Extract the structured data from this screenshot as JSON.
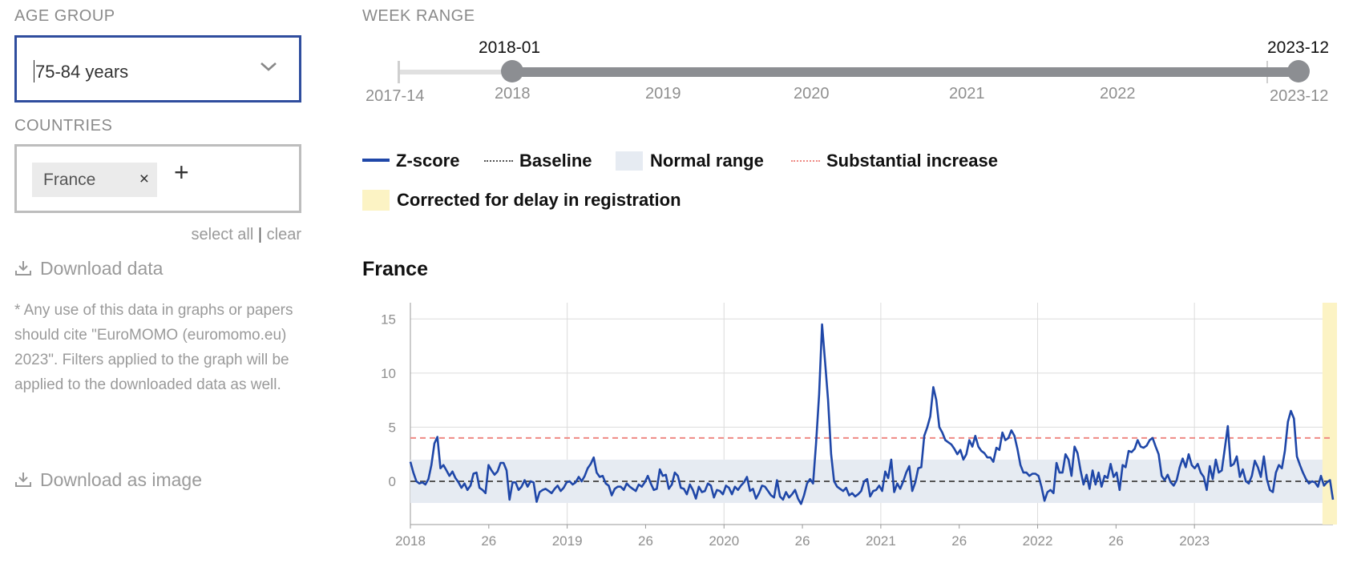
{
  "sidebar": {
    "age_group_label": "AGE GROUP",
    "age_group_value": "75-84 years",
    "countries_label": "COUNTRIES",
    "countries_selected": [
      "France"
    ],
    "chip_remove": "×",
    "add_symbol": "+",
    "select_all": "select all",
    "separator": "|",
    "clear": "clear",
    "download_data": "Download data",
    "note": "* Any use of this data in graphs or papers should cite \"EuroMOMO (euromomo.eu) 2023\". Filters applied to the graph will be applied to the downloaded data as well.",
    "download_image": "Download as image"
  },
  "week_range": {
    "label": "WEEK RANGE",
    "start_min": "2017-14",
    "end_max": "2023-12",
    "selected_start": "2018-01",
    "selected_end": "2023-12",
    "year_ticks": [
      "2018",
      "2019",
      "2020",
      "2021",
      "2022",
      "2023-12"
    ],
    "range_fraction": [
      0.0,
      1.0
    ]
  },
  "legend": {
    "zscore": "Z-score",
    "baseline": "Baseline",
    "normal_range": "Normal range",
    "substantial": "Substantial increase",
    "corrected": "Corrected for delay in registration"
  },
  "colors": {
    "line": "#1f47a8",
    "baseline": "#555555",
    "normal_range": "#e6ebf2",
    "substantial": "#ef8a84",
    "corrected": "#fcf3c4",
    "select_border": "#2f4d9e"
  },
  "chart_data": {
    "type": "line",
    "title": "France",
    "ylim": [
      -4,
      16.5
    ],
    "yticks": [
      15,
      10,
      5,
      0
    ],
    "xticks": [
      "2018",
      "26",
      "2019",
      "26",
      "2020",
      "26",
      "2021",
      "26",
      "2022",
      "26",
      "2023"
    ],
    "baseline": 0,
    "normal_range": [
      -2,
      2
    ],
    "substantial_increase": 4,
    "corrected_weeks": 3,
    "grid": true,
    "series": [
      {
        "name": "Z-score",
        "values": [
          1.8,
          0.8,
          0.0,
          -0.2,
          -0.1,
          -0.3,
          0.2,
          1.5,
          3.5,
          4.1,
          1.2,
          1.5,
          1.0,
          0.5,
          0.9,
          0.3,
          -0.1,
          -0.6,
          -0.2,
          -0.8,
          -0.4,
          0.7,
          0.8,
          -0.6,
          -0.8,
          -1.1,
          1.5,
          1.0,
          0.6,
          0.9,
          1.7,
          1.7,
          1.0,
          -1.7,
          -0.1,
          -0.1,
          -0.8,
          -0.5,
          0.1,
          -0.5,
          0.0,
          -0.1,
          -1.9,
          -1.0,
          -0.8,
          -0.7,
          -0.9,
          -1.1,
          -0.7,
          -0.4,
          -0.9,
          -0.6,
          -0.1,
          0.0,
          -0.3,
          -0.1,
          0.4,
          0.0,
          0.5,
          1.2,
          1.6,
          2.2,
          0.8,
          0.4,
          0.5,
          -0.2,
          -0.4,
          -1.3,
          -0.7,
          -0.5,
          -0.5,
          -0.8,
          -0.2,
          -0.5,
          -0.7,
          -0.9,
          -0.3,
          -0.5,
          -0.1,
          0.5,
          -0.2,
          -0.8,
          -0.7,
          1.1,
          0.5,
          0.6,
          -0.7,
          -0.3,
          0.8,
          0.5,
          -0.6,
          -0.7,
          -1.2,
          -0.3,
          -0.8,
          -1.6,
          -0.5,
          -1.0,
          -0.9,
          -0.2,
          -0.4,
          -1.5,
          -0.8,
          -0.9,
          -1.2,
          -0.4,
          -0.6,
          -1.2,
          -0.5,
          -0.8,
          -0.4,
          -0.1,
          0.4,
          -0.9,
          -0.7,
          -1.6,
          -1.1,
          -0.4,
          -0.5,
          -0.9,
          -1.3,
          -1.5,
          0.1,
          -1.4,
          -1.7,
          -1.0,
          -1.5,
          -1.2,
          -0.8,
          -1.6,
          -2.1,
          -1.3,
          -0.2,
          0.2,
          -0.2,
          3.5,
          8.0,
          14.5,
          11.0,
          7.5,
          2.5,
          0.0,
          -0.5,
          -0.7,
          -0.9,
          -0.6,
          -1.3,
          -1.1,
          -1.4,
          -1.2,
          -0.9,
          0.0,
          0.2,
          -1.4,
          -0.9,
          -0.8,
          -0.4,
          -0.9,
          0.9,
          0.3,
          2.0,
          -1.0,
          -0.2,
          -0.7,
          0.0,
          0.8,
          1.4,
          -0.9,
          -0.1,
          1.2,
          1.3,
          4.2,
          5.0,
          6.0,
          8.7,
          7.5,
          5.0,
          4.5,
          3.8,
          3.6,
          3.4,
          3.0,
          2.5,
          2.9,
          2.0,
          2.5,
          3.8,
          3.2,
          4.2,
          3.2,
          2.8,
          2.6,
          2.2,
          2.2,
          1.8,
          3.1,
          2.9,
          4.5,
          3.8,
          4.0,
          4.7,
          4.2,
          3.0,
          1.5,
          0.8,
          0.8,
          0.5,
          0.7,
          0.7,
          0.5,
          -0.5,
          -1.8,
          -1.0,
          -0.8,
          -1.1,
          1.7,
          0.8,
          0.8,
          2.5,
          2.0,
          0.5,
          3.2,
          2.6,
          1.0,
          -0.3,
          0.6,
          -0.7,
          1.0,
          -0.3,
          0.8,
          -0.5,
          0.5,
          0.3,
          1.6,
          0.4,
          0.8,
          -0.8,
          1.5,
          1.3,
          2.8,
          2.7,
          3.0,
          3.8,
          3.2,
          3.1,
          3.3,
          3.8,
          4.0,
          3.2,
          2.5,
          0.5,
          0.1,
          0.6,
          -0.1,
          -0.4,
          0.1,
          1.3,
          2.1,
          1.3,
          2.5,
          1.5,
          1.2,
          1.6,
          0.8,
          0.4,
          -0.8,
          1.4,
          0.2,
          2.0,
          0.8,
          1.0,
          3.0,
          5.1,
          1.4,
          1.6,
          2.3,
          0.4,
          1.1,
          0.0,
          -0.2,
          0.5,
          1.9,
          1.3,
          0.4,
          2.3,
          0.2,
          -0.8,
          -1.0,
          0.8,
          1.5,
          1.2,
          2.8,
          5.5,
          6.5,
          5.8,
          2.3,
          1.5,
          0.8,
          0.2,
          -0.2,
          0.0,
          -0.1,
          -0.5,
          0.5,
          -0.4,
          -0.1,
          0.1,
          -1.7
        ]
      }
    ]
  }
}
